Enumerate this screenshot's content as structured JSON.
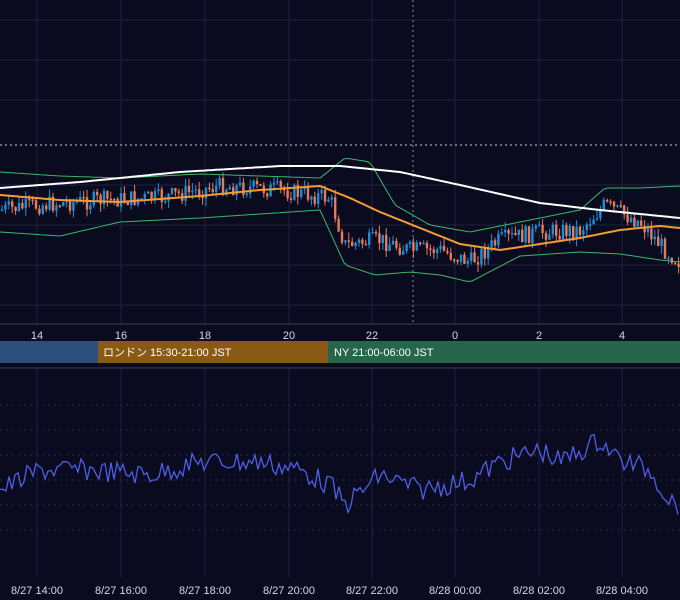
{
  "colors": {
    "background": "#0a0b1e",
    "grid": "#1f2238",
    "candle_up": "#1e8fd6",
    "candle_down": "#e67a5c",
    "ma_short": "#f39c33",
    "ma_long": "#ffffff",
    "band": "#3db86a",
    "oscillator": "#4f5ee8",
    "session_tokyo": "#2c4f7c",
    "session_london": "#8a5a14",
    "session_ny": "#26664a",
    "text": "#d6d8e6"
  },
  "chart_data": {
    "type": "candlestick",
    "xlabel": "",
    "ylabel": "",
    "hour_ticks": [
      "14",
      "16",
      "18",
      "20",
      "22",
      "0",
      "2",
      "4"
    ],
    "datetime_ticks": [
      "8/27 14:00",
      "8/27 16:00",
      "8/27 18:00",
      "8/27 20:00",
      "8/27 22:00",
      "8/28 00:00",
      "8/28 02:00",
      "8/28 04:00"
    ],
    "sessions": [
      {
        "name": "tokyo",
        "label": ""
      },
      {
        "name": "london",
        "label": "ロンドン 15:30-21:00 JST"
      },
      {
        "name": "ny",
        "label": "NY 21:00-06:00 JST"
      }
    ],
    "overlays": [
      "moving-average-short",
      "moving-average-long",
      "bollinger-bands"
    ],
    "indicator": "oscillator",
    "grid": true
  }
}
